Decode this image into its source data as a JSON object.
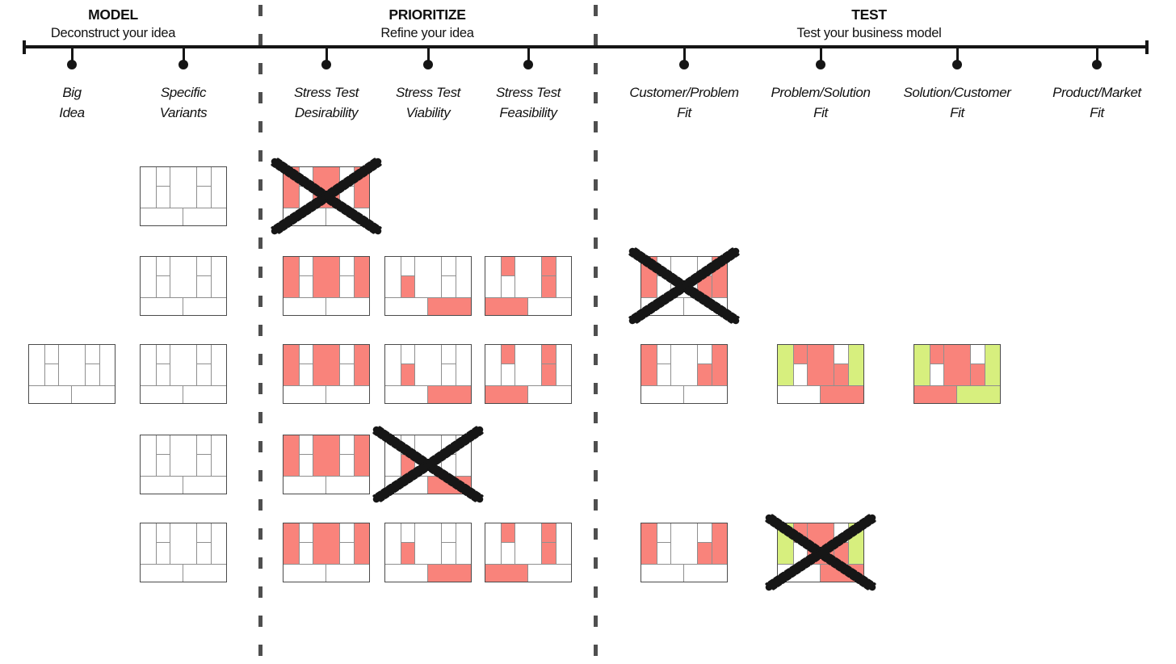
{
  "sections": [
    {
      "title": "MODEL",
      "subtitle": "Deconstruct your idea"
    },
    {
      "title": "PRIORITIZE",
      "subtitle": "Refine your idea"
    },
    {
      "title": "TEST",
      "subtitle": "Test your business model"
    }
  ],
  "columns": [
    {
      "id": "big-idea",
      "lines": [
        "Big",
        "Idea"
      ]
    },
    {
      "id": "specific-variants",
      "lines": [
        "Specific",
        "Variants"
      ]
    },
    {
      "id": "stress-test-desirability",
      "lines": [
        "Stress Test",
        "Desirability"
      ]
    },
    {
      "id": "stress-test-viability",
      "lines": [
        "Stress Test",
        "Viability"
      ]
    },
    {
      "id": "stress-test-feasibility",
      "lines": [
        "Stress Test",
        "Feasibility"
      ]
    },
    {
      "id": "customer-problem-fit",
      "lines": [
        "Customer/Problem",
        "Fit"
      ]
    },
    {
      "id": "problem-solution-fit",
      "lines": [
        "Problem/Solution",
        "Fit"
      ]
    },
    {
      "id": "solution-customer-fit",
      "lines": [
        "Solution/Customer",
        "Fit"
      ]
    },
    {
      "id": "product-market-fit",
      "lines": [
        "Product/Market",
        "Fit"
      ]
    }
  ],
  "colors": {
    "highlight_red": "#f9837b",
    "highlight_green": "#d7ef7e",
    "cross": "#161616",
    "line": "#151515"
  },
  "patterns": {
    "plain": {},
    "desirability": {
      "key_partners": "red",
      "value_proposition": "red",
      "customer_segments": "red"
    },
    "viability": {
      "key_resources": "red",
      "revenue_streams": "red"
    },
    "feasibility": {
      "key_activities": "red",
      "customer_relationships": "red",
      "channels": "red",
      "cost_structure": "red"
    },
    "customer_problem": {
      "key_partners": "red",
      "channels": "red",
      "customer_segments": "red"
    },
    "problem_solution": {
      "key_partners": "green",
      "key_activities": "red",
      "value_proposition": "red",
      "channels": "red",
      "customer_segments": "green",
      "revenue_streams": "red"
    },
    "solution_customer": {
      "key_partners": "green",
      "key_activities": "red",
      "value_proposition": "red",
      "channels": "red",
      "customer_segments": "green",
      "cost_structure": "red",
      "revenue_streams": "green"
    }
  },
  "canvases": [
    {
      "column": "specific-variants",
      "row": 1,
      "pattern": "plain",
      "crossed": false
    },
    {
      "column": "stress-test-desirability",
      "row": 1,
      "pattern": "desirability",
      "crossed": true
    },
    {
      "column": "specific-variants",
      "row": 2,
      "pattern": "plain",
      "crossed": false
    },
    {
      "column": "stress-test-desirability",
      "row": 2,
      "pattern": "desirability",
      "crossed": false
    },
    {
      "column": "stress-test-viability",
      "row": 2,
      "pattern": "viability",
      "crossed": false
    },
    {
      "column": "stress-test-feasibility",
      "row": 2,
      "pattern": "feasibility",
      "crossed": false
    },
    {
      "column": "customer-problem-fit",
      "row": 2,
      "pattern": "customer_problem",
      "crossed": true
    },
    {
      "column": "big-idea",
      "row": 3,
      "pattern": "plain",
      "crossed": false
    },
    {
      "column": "specific-variants",
      "row": 3,
      "pattern": "plain",
      "crossed": false
    },
    {
      "column": "stress-test-desirability",
      "row": 3,
      "pattern": "desirability",
      "crossed": false
    },
    {
      "column": "stress-test-viability",
      "row": 3,
      "pattern": "viability",
      "crossed": false
    },
    {
      "column": "stress-test-feasibility",
      "row": 3,
      "pattern": "feasibility",
      "crossed": false
    },
    {
      "column": "customer-problem-fit",
      "row": 3,
      "pattern": "customer_problem",
      "crossed": false
    },
    {
      "column": "problem-solution-fit",
      "row": 3,
      "pattern": "problem_solution",
      "crossed": false
    },
    {
      "column": "solution-customer-fit",
      "row": 3,
      "pattern": "solution_customer",
      "crossed": false
    },
    {
      "column": "specific-variants",
      "row": 4,
      "pattern": "plain",
      "crossed": false
    },
    {
      "column": "stress-test-desirability",
      "row": 4,
      "pattern": "desirability",
      "crossed": false
    },
    {
      "column": "stress-test-viability",
      "row": 4,
      "pattern": "viability",
      "crossed": true
    },
    {
      "column": "specific-variants",
      "row": 5,
      "pattern": "plain",
      "crossed": false
    },
    {
      "column": "stress-test-desirability",
      "row": 5,
      "pattern": "desirability",
      "crossed": false
    },
    {
      "column": "stress-test-viability",
      "row": 5,
      "pattern": "viability",
      "crossed": false
    },
    {
      "column": "stress-test-feasibility",
      "row": 5,
      "pattern": "feasibility",
      "crossed": false
    },
    {
      "column": "customer-problem-fit",
      "row": 5,
      "pattern": "customer_problem",
      "crossed": false
    },
    {
      "column": "problem-solution-fit",
      "row": 5,
      "pattern": "problem_solution",
      "crossed": true
    }
  ]
}
